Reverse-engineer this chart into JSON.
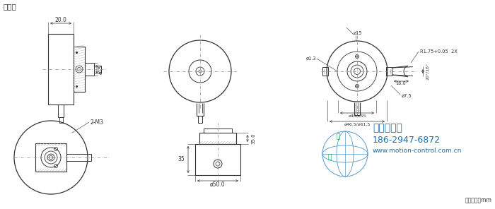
{
  "title": "盲孔轴",
  "bg_color": "#ffffff",
  "lc": "#333333",
  "dc": "#333333",
  "clc": "#888888",
  "blue": "#1a6fb5",
  "green": "#00aa44",
  "unit_label": "尺寸单位：mm",
  "company": "西安德伍拓",
  "phone": "186-2947-6872",
  "website": "www.motion-control.com.cn",
  "d_20": "20.0",
  "d_o15": "ø15",
  "d_r175": "R1.75+0.05  2X",
  "d_angle": "20°/16°",
  "d_160": "16.0",
  "d_o13": "ø1.3",
  "d_o75": "ø7.5",
  "d_o4055": "ø40/ø55",
  "d_o46": "ø46.5/ø61.5",
  "d_2m3": "2-M3",
  "d_35": "35",
  "d_350": "35.0",
  "d_o50": "ø50.0"
}
